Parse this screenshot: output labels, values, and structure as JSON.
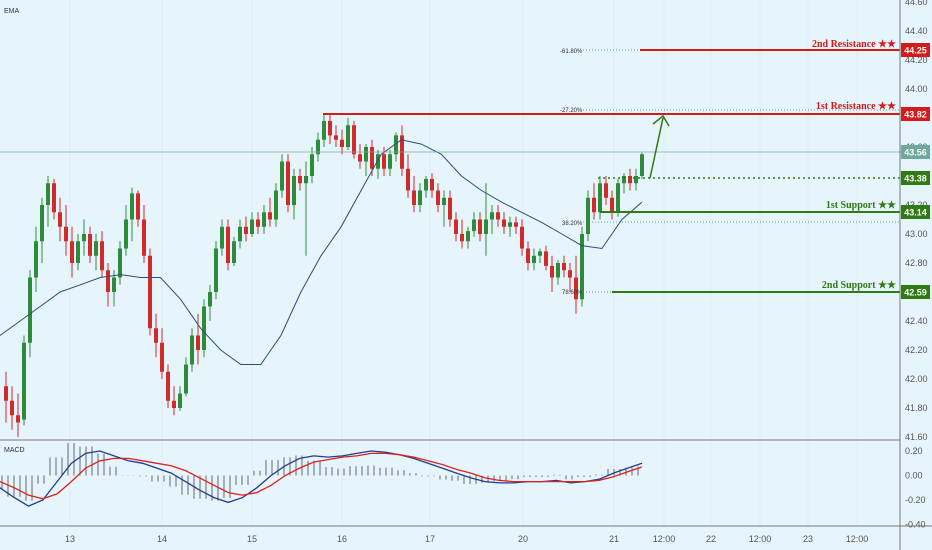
{
  "chart_data": [
    {
      "type": "candlestick",
      "indicator": "EMA",
      "price_ticks": [
        "44.60",
        "44.40",
        "44.20",
        "44.00",
        "43.80",
        "43.60",
        "43.40",
        "43.20",
        "43.00",
        "42.80",
        "42.60",
        "42.40",
        "42.20",
        "42.00",
        "41.80",
        "41.60"
      ],
      "date_ticks": [
        "13",
        "14",
        "15",
        "16",
        "17",
        "20",
        "21",
        "12:00",
        "22",
        "12:00",
        "23",
        "12:00"
      ],
      "levels": [
        {
          "name": "2nd Resistance ★★",
          "price": "44.25",
          "color": "#d61a1a",
          "fib": "-61.80%"
        },
        {
          "name": "1st Resistance ★★",
          "price": "43.82",
          "color": "#d61a1a",
          "fib": "-27.20%"
        },
        {
          "name": "1st Support ★★",
          "price": "43.14",
          "color": "#2f7a12",
          "fib": "38.20%"
        },
        {
          "name": "2nd Support ★★",
          "price": "42.59",
          "color": "#2f7a12",
          "fib": "78.60%"
        }
      ],
      "current_price": "43.56",
      "entry_level": "43.38",
      "ema_series": [
        42.3,
        42.4,
        42.5,
        42.6,
        42.65,
        42.7,
        42.72,
        42.7,
        42.7,
        42.55,
        42.35,
        42.2,
        42.1,
        42.1,
        42.3,
        42.6,
        42.85,
        43.05,
        43.3,
        43.55,
        43.65,
        43.62,
        43.55,
        43.4,
        43.3,
        43.22,
        43.15,
        43.08,
        43.0,
        42.92,
        42.9,
        43.1,
        43.22
      ]
    },
    {
      "type": "macd",
      "title": "MACD",
      "ticks": [
        "0.20",
        "0.00",
        "-0.20",
        "-0.40"
      ]
    }
  ]
}
